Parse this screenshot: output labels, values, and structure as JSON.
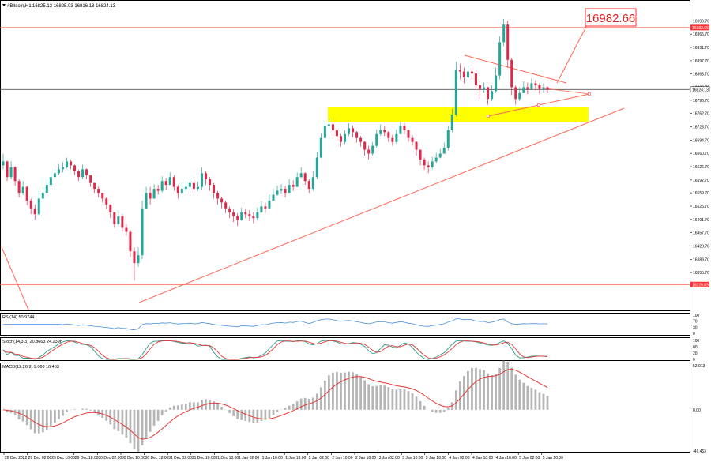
{
  "header": {
    "symbol_label": "#Bitcoin,H1",
    "ohlc_label": "16825.13 16825.03 16816.18 16824.13"
  },
  "annotation": {
    "callout_value": "16982.66"
  },
  "colors": {
    "bull": "#26a69a",
    "bear": "#e0294a",
    "zone": "#ffff00",
    "trend": "#ff6655",
    "rsi_line": "#4a90d9",
    "stoch_main": "#2e9b8f",
    "stoch_signal": "#e53935",
    "macd_hist": "#b5b5b5",
    "macd_signal": "#e53935"
  },
  "indicators": {
    "rsi": {
      "label": "RSI(14) 50.9744",
      "levels": [
        "100",
        "70",
        "30",
        "0"
      ]
    },
    "stoch": {
      "label": "Stoch(14,3,3) 20.8663 24.2398",
      "levels": [
        "100",
        "80",
        "20",
        "0"
      ]
    },
    "macd": {
      "label": "MACD(12,26,9) 9.068 16.463",
      "levels": [
        "52.913",
        "0.00",
        "-49.463"
      ]
    }
  },
  "chart_data": {
    "type": "candlestick",
    "ylim": [
      16265,
      17045
    ],
    "price_axis_labels": [
      "16999.70",
      "16965.70",
      "16931.70",
      "16897.70",
      "16863.70",
      "16829.70",
      "16796.70",
      "16762.70",
      "16728.70",
      "16694.70",
      "16660.70",
      "16626.70",
      "16592.70",
      "16559.70",
      "16525.70",
      "16491.70",
      "16457.70",
      "16423.70",
      "16389.70",
      "16355.70"
    ],
    "price_tags": {
      "upper": "16982.66",
      "current": "16824.13",
      "lower": "16325.09"
    },
    "x_labels": [
      "28 Dec 2022",
      "29 Dec 02:00",
      "29 Dec 10:00",
      "29 Dec 18:00",
      "30 Dec 02:00",
      "30 Dec 10:00",
      "30 Dec 18:00",
      "31 Dec 02:00",
      "31 Dec 10:00",
      "31 Dec 18:00",
      "1 Jan 02:00",
      "1 Jan 10:00",
      "1 Jan 18:00",
      "2 Jan 02:00",
      "2 Jan 10:00",
      "2 Jan 18:00",
      "3 Jan 02:00",
      "3 Jan 10:00",
      "3 Jan 18:00",
      "4 Jan 02:00",
      "4 Jan 10:00",
      "4 Jan 18:00",
      "5 Jan 02:00",
      "5 Jan 10:00"
    ],
    "close_series": [
      16640,
      16600,
      16625,
      16590,
      16560,
      16575,
      16540,
      16520,
      16505,
      16545,
      16560,
      16580,
      16600,
      16610,
      16620,
      16625,
      16640,
      16630,
      16615,
      16600,
      16620,
      16605,
      16585,
      16570,
      16560,
      16545,
      16530,
      16510,
      16480,
      16500,
      16470,
      16460,
      16410,
      16380,
      16400,
      16520,
      16560,
      16545,
      16570,
      16565,
      16590,
      16580,
      16600,
      16575,
      16560,
      16570,
      16575,
      16585,
      16570,
      16575,
      16610,
      16595,
      16580,
      16560,
      16545,
      16535,
      16520,
      16510,
      16500,
      16490,
      16510,
      16505,
      16500,
      16495,
      16510,
      16525,
      16520,
      16540,
      16555,
      16565,
      16570,
      16560,
      16580,
      16575,
      16600,
      16610,
      16590,
      16570,
      16600,
      16650,
      16700,
      16730,
      16735,
      16720,
      16705,
      16690,
      16710,
      16725,
      16715,
      16700,
      16690,
      16670,
      16660,
      16680,
      16710,
      16720,
      16715,
      16700,
      16690,
      16710,
      16730,
      16720,
      16700,
      16690,
      16670,
      16645,
      16630,
      16625,
      16640,
      16650,
      16660,
      16675,
      16720,
      16760,
      16875,
      16870,
      16855,
      16870,
      16865,
      16835,
      16825,
      16830,
      16800,
      16820,
      16860,
      16945,
      16990,
      16900,
      16830,
      16800,
      16815,
      16830,
      16825,
      16840,
      16835,
      16825,
      16830,
      16824
    ],
    "high_series": [
      16660,
      16642,
      16640,
      16628,
      16595,
      16590,
      16578,
      16545,
      16530,
      16565,
      16575,
      16595,
      16612,
      16622,
      16632,
      16638,
      16650,
      16645,
      16632,
      16618,
      16632,
      16622,
      16600,
      16585,
      16575,
      16560,
      16548,
      16530,
      16510,
      16515,
      16505,
      16480,
      16465,
      16420,
      16420,
      16540,
      16575,
      16575,
      16582,
      16580,
      16602,
      16598,
      16612,
      16605,
      16580,
      16585,
      16590,
      16598,
      16590,
      16588,
      16625,
      16615,
      16600,
      16585,
      16565,
      16550,
      16540,
      16525,
      16518,
      16508,
      16522,
      16520,
      16515,
      16510,
      16522,
      16538,
      16535,
      16555,
      16570,
      16578,
      16582,
      16578,
      16595,
      16592,
      16612,
      16625,
      16612,
      16595,
      16615,
      16665,
      16712,
      16745,
      16750,
      16740,
      16725,
      16710,
      16720,
      16738,
      16732,
      16718,
      16705,
      16692,
      16680,
      16690,
      16722,
      16735,
      16730,
      16718,
      16708,
      16722,
      16742,
      16738,
      16722,
      16708,
      16692,
      16668,
      16650,
      16640,
      16652,
      16662,
      16672,
      16688,
      16730,
      16775,
      16895,
      16890,
      16880,
      16885,
      16880,
      16872,
      16845,
      16842,
      16825,
      16835,
      16880,
      16960,
      17005,
      17000,
      16905,
      16835,
      16830,
      16845,
      16842,
      16852,
      16848,
      16840,
      16840,
      16832
    ],
    "low_series": [
      16620,
      16590,
      16595,
      16578,
      16548,
      16555,
      16528,
      16505,
      16490,
      16500,
      16545,
      16560,
      16580,
      16596,
      16605,
      16612,
      16622,
      16620,
      16605,
      16590,
      16595,
      16595,
      16575,
      16560,
      16548,
      16535,
      16518,
      16495,
      16470,
      16472,
      16460,
      16450,
      16395,
      16335,
      16370,
      16390,
      16540,
      16530,
      16545,
      16555,
      16560,
      16568,
      16580,
      16565,
      16545,
      16555,
      16562,
      16572,
      16560,
      16565,
      16568,
      16580,
      16565,
      16545,
      16530,
      16520,
      16508,
      16495,
      16485,
      16475,
      16488,
      16495,
      16488,
      16482,
      16490,
      16508,
      16508,
      16520,
      16540,
      16552,
      16558,
      16548,
      16562,
      16565,
      16585,
      16598,
      16580,
      16560,
      16565,
      16595,
      16648,
      16705,
      16720,
      16705,
      16692,
      16678,
      16685,
      16705,
      16702,
      16688,
      16678,
      16655,
      16645,
      16655,
      16675,
      16705,
      16705,
      16690,
      16680,
      16685,
      16712,
      16710,
      16690,
      16680,
      16655,
      16630,
      16618,
      16610,
      16620,
      16635,
      16648,
      16660,
      16668,
      16715,
      16755,
      16850,
      16840,
      16852,
      16850,
      16825,
      16800,
      16815,
      16785,
      16795,
      16815,
      16850,
      16935,
      16880,
      16810,
      16785,
      16795,
      16815,
      16812,
      16825,
      16822,
      16812,
      16815,
      16815
    ]
  }
}
